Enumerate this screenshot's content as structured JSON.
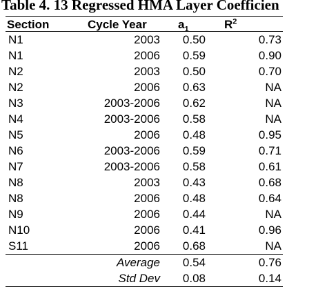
{
  "caption": "Table 4. 13  Regressed HMA Layer Coefficien",
  "headers": {
    "section": "Section",
    "cycle_year": "Cycle Year",
    "a_base": "a",
    "a_sub": "1",
    "r_base": "R",
    "r_sup": "2"
  },
  "rows": [
    {
      "section": "N1",
      "cycle_year": "2003",
      "a1": "0.50",
      "r2": "0.73"
    },
    {
      "section": "N1",
      "cycle_year": "2006",
      "a1": "0.59",
      "r2": "0.90"
    },
    {
      "section": "N2",
      "cycle_year": "2003",
      "a1": "0.50",
      "r2": "0.70"
    },
    {
      "section": "N2",
      "cycle_year": "2006",
      "a1": "0.63",
      "r2": "NA"
    },
    {
      "section": "N3",
      "cycle_year": "2003-2006",
      "a1": "0.62",
      "r2": "NA"
    },
    {
      "section": "N4",
      "cycle_year": "2003-2006",
      "a1": "0.58",
      "r2": "NA"
    },
    {
      "section": "N5",
      "cycle_year": "2006",
      "a1": "0.48",
      "r2": "0.95"
    },
    {
      "section": "N6",
      "cycle_year": "2003-2006",
      "a1": "0.59",
      "r2": "0.71"
    },
    {
      "section": "N7",
      "cycle_year": "2003-2006",
      "a1": "0.58",
      "r2": "0.61"
    },
    {
      "section": "N8",
      "cycle_year": "2003",
      "a1": "0.43",
      "r2": "0.68"
    },
    {
      "section": "N8",
      "cycle_year": "2006",
      "a1": "0.48",
      "r2": "0.64"
    },
    {
      "section": "N9",
      "cycle_year": "2006",
      "a1": "0.44",
      "r2": "NA"
    },
    {
      "section": "N10",
      "cycle_year": "2006",
      "a1": "0.41",
      "r2": "0.96"
    },
    {
      "section": "S11",
      "cycle_year": "2006",
      "a1": "0.68",
      "r2": "NA"
    }
  ],
  "summary": [
    {
      "label": "Average",
      "a1": "0.54",
      "r2": "0.76"
    },
    {
      "label": "Std Dev",
      "a1": "0.08",
      "r2": "0.14"
    }
  ]
}
